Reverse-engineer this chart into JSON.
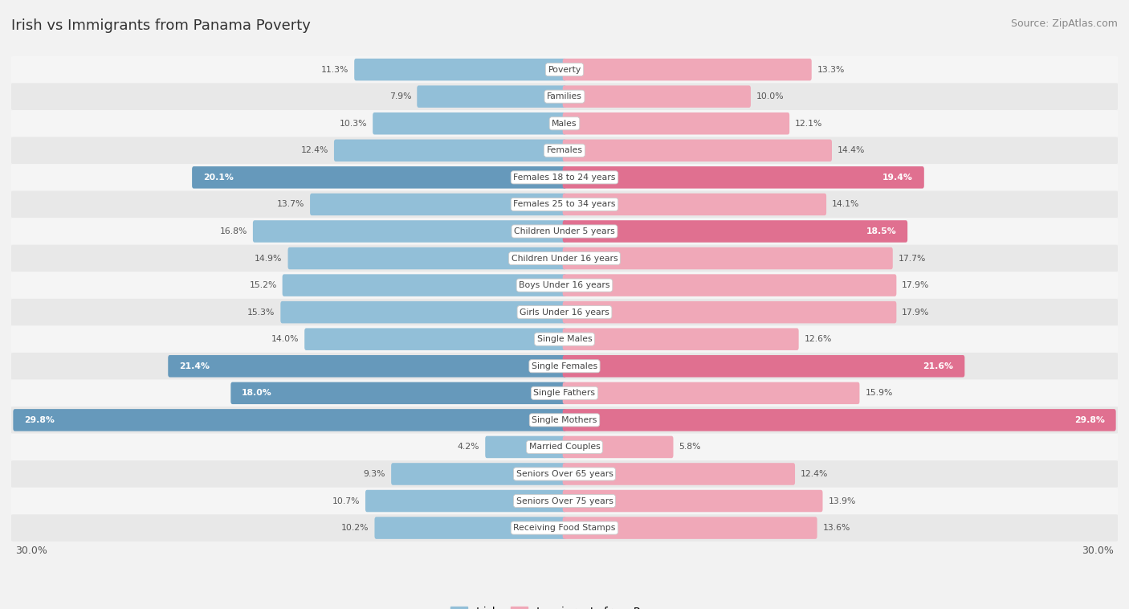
{
  "title": "Irish vs Immigrants from Panama Poverty",
  "source": "Source: ZipAtlas.com",
  "categories": [
    "Poverty",
    "Families",
    "Males",
    "Females",
    "Females 18 to 24 years",
    "Females 25 to 34 years",
    "Children Under 5 years",
    "Children Under 16 years",
    "Boys Under 16 years",
    "Girls Under 16 years",
    "Single Males",
    "Single Females",
    "Single Fathers",
    "Single Mothers",
    "Married Couples",
    "Seniors Over 65 years",
    "Seniors Over 75 years",
    "Receiving Food Stamps"
  ],
  "irish_values": [
    11.3,
    7.9,
    10.3,
    12.4,
    20.1,
    13.7,
    16.8,
    14.9,
    15.2,
    15.3,
    14.0,
    21.4,
    18.0,
    29.8,
    4.2,
    9.3,
    10.7,
    10.2
  ],
  "panama_values": [
    13.3,
    10.0,
    12.1,
    14.4,
    19.4,
    14.1,
    18.5,
    17.7,
    17.9,
    17.9,
    12.6,
    21.6,
    15.9,
    29.8,
    5.8,
    12.4,
    13.9,
    13.6
  ],
  "irish_color_normal": "#92BFD8",
  "irish_color_highlight": "#6699BB",
  "panama_color_normal": "#F0A8B8",
  "panama_color_highlight": "#E07090",
  "row_color_even": "#f5f5f5",
  "row_color_odd": "#e8e8e8",
  "x_max": 30.0,
  "irish_highlight_indices": [
    4,
    11,
    12,
    13
  ],
  "panama_highlight_indices": [
    4,
    6,
    11,
    13
  ],
  "background_color": "#f2f2f2"
}
